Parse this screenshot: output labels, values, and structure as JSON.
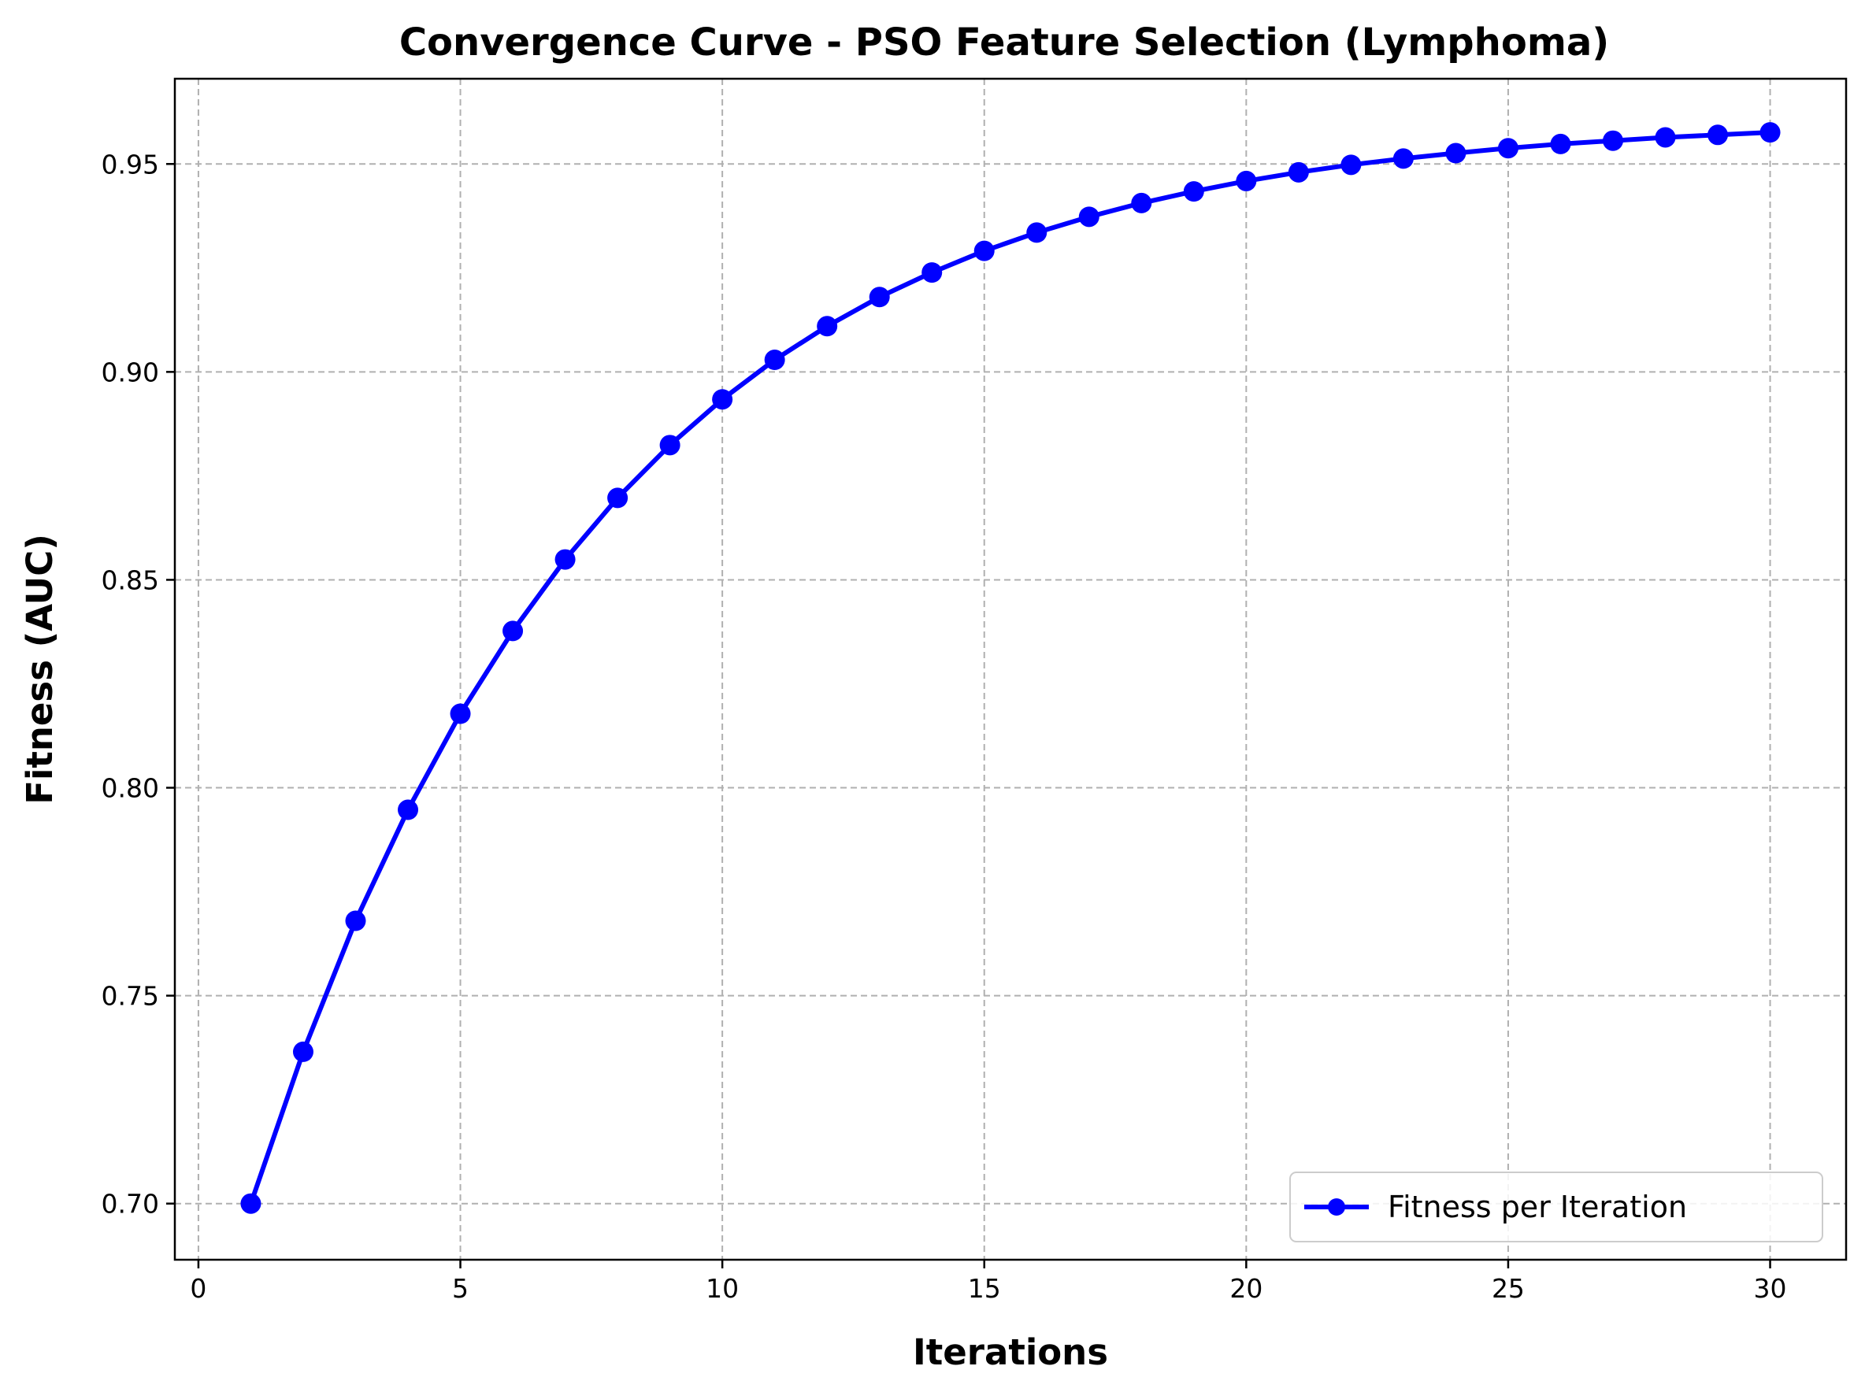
{
  "chart_data": {
    "type": "line",
    "title": "Convergence Curve - PSO Feature Selection (Lymphoma)",
    "xlabel": "Iterations",
    "ylabel": "Fitness (AUC)",
    "xlim": [
      -0.45,
      31.45
    ],
    "ylim": [
      0.6865,
      0.9705
    ],
    "xticks": [
      0,
      5,
      10,
      15,
      20,
      25,
      30
    ],
    "yticks": [
      0.7,
      0.75,
      0.8,
      0.85,
      0.9,
      0.95
    ],
    "ytick_format_decimals": 2,
    "grid": true,
    "legend_position": "lower-right",
    "series": [
      {
        "name": "Fitness per Iteration",
        "color": "#0000ff",
        "marker": "circle",
        "x": [
          1,
          2,
          3,
          4,
          5,
          6,
          7,
          8,
          9,
          10,
          11,
          12,
          13,
          14,
          15,
          16,
          17,
          18,
          19,
          20,
          21,
          22,
          23,
          24,
          25,
          26,
          27,
          28,
          29,
          30
        ],
        "y": [
          0.7,
          0.7365,
          0.768,
          0.7947,
          0.8178,
          0.8377,
          0.8549,
          0.8697,
          0.8824,
          0.8934,
          0.9029,
          0.911,
          0.918,
          0.9239,
          0.9291,
          0.9335,
          0.9373,
          0.9406,
          0.9434,
          0.9459,
          0.948,
          0.9498,
          0.9513,
          0.9526,
          0.9538,
          0.9548,
          0.9556,
          0.9564,
          0.957,
          0.9576
        ]
      }
    ]
  }
}
